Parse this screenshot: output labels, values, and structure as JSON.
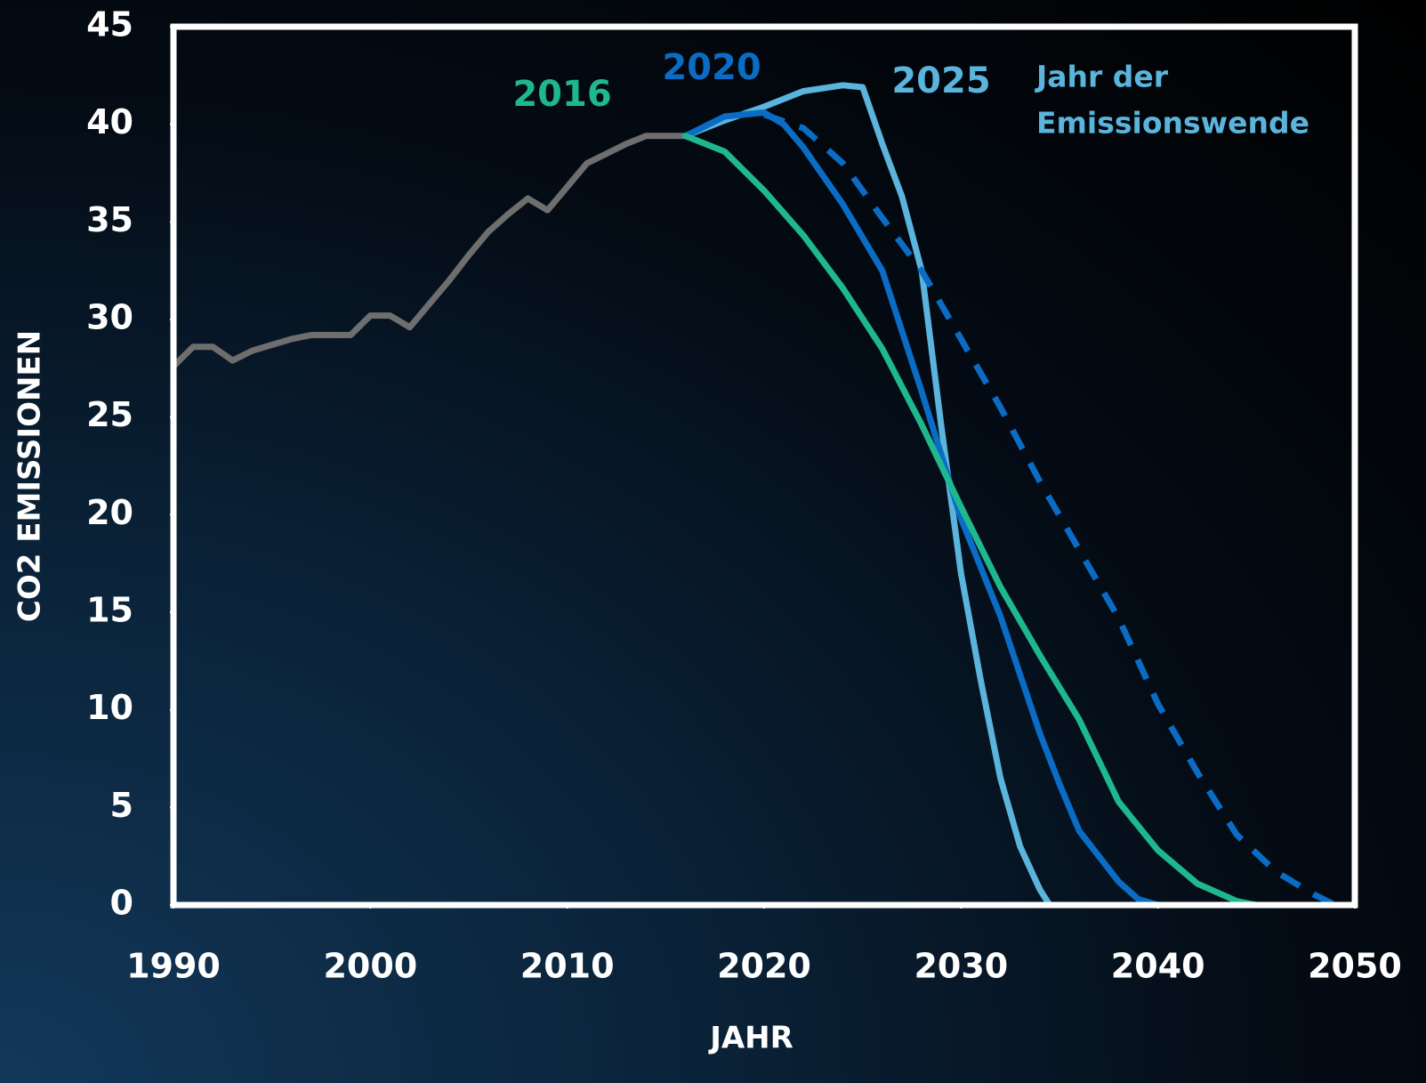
{
  "chart_data": {
    "type": "line",
    "x_label": "JAHR",
    "y_label": "CO2 EMISSIONEN",
    "annotation": [
      "Jahr der",
      "Emissionswende"
    ],
    "xlim": [
      1990,
      2050
    ],
    "ylim": [
      0,
      45
    ],
    "xticks": [
      1990,
      2000,
      2010,
      2020,
      2030,
      2040,
      2050
    ],
    "yticks": [
      0,
      5,
      10,
      15,
      20,
      25,
      30,
      35,
      40,
      45
    ],
    "series": [
      {
        "color": "#6e6e6e",
        "x": [
          1990,
          1991,
          1992,
          1993,
          1994,
          1995,
          1996,
          1997,
          1998,
          1999,
          2000,
          2001,
          2002,
          2003,
          2004,
          2005,
          2006,
          2007,
          2008,
          2009,
          2010,
          2011,
          2012,
          2013,
          2014,
          2015,
          2016
        ],
        "values": [
          27.6,
          28.6,
          28.6,
          27.9,
          28.4,
          28.7,
          29.0,
          29.2,
          29.2,
          29.2,
          30.2,
          30.2,
          29.6,
          30.8,
          32.0,
          33.3,
          34.5,
          35.4,
          36.2,
          35.6,
          36.8,
          38.0,
          38.5,
          39.0,
          39.4,
          39.4,
          39.4
        ]
      },
      {
        "name": "2025",
        "color": "#5ab4dc",
        "x": [
          2016,
          2018,
          2020,
          2022,
          2024,
          2025,
          2026,
          2027,
          2028,
          2029,
          2030,
          2031,
          2032,
          2033,
          2034,
          2034.5
        ],
        "values": [
          39.4,
          40.2,
          40.9,
          41.7,
          42.0,
          41.9,
          39.0,
          36.3,
          32.5,
          24.5,
          17.0,
          11.5,
          6.5,
          3.0,
          0.8,
          0
        ]
      },
      {
        "color": "#0a6cc4",
        "dashed": true,
        "x": [
          2020,
          2022,
          2024,
          2026,
          2028,
          2030,
          2032,
          2034,
          2036,
          2038,
          2040,
          2042,
          2044,
          2046,
          2048,
          2049
        ],
        "values": [
          40.5,
          39.8,
          38.0,
          35.2,
          32.5,
          29.0,
          25.5,
          21.7,
          18.2,
          14.7,
          10.3,
          6.8,
          3.6,
          1.7,
          0.5,
          0
        ]
      },
      {
        "name": "2020",
        "color": "#0a6cc4",
        "x": [
          2016,
          2018,
          2020,
          2021,
          2022,
          2024,
          2026,
          2028,
          2030,
          2032,
          2034,
          2035,
          2036,
          2038,
          2039,
          2040
        ],
        "values": [
          39.4,
          40.4,
          40.6,
          40.0,
          38.8,
          35.9,
          32.5,
          26.3,
          19.8,
          14.8,
          8.8,
          6.2,
          3.8,
          1.2,
          0.3,
          0
        ]
      },
      {
        "name": "2016",
        "color": "#1fb88e",
        "x": [
          2016,
          2018,
          2020,
          2022,
          2024,
          2026,
          2028,
          2030,
          2032,
          2034,
          2036,
          2038,
          2040,
          2042,
          2044,
          2045
        ],
        "values": [
          39.4,
          38.6,
          36.6,
          34.3,
          31.6,
          28.5,
          24.6,
          20.4,
          16.3,
          12.8,
          9.5,
          5.3,
          2.8,
          1.1,
          0.2,
          0
        ]
      }
    ]
  }
}
